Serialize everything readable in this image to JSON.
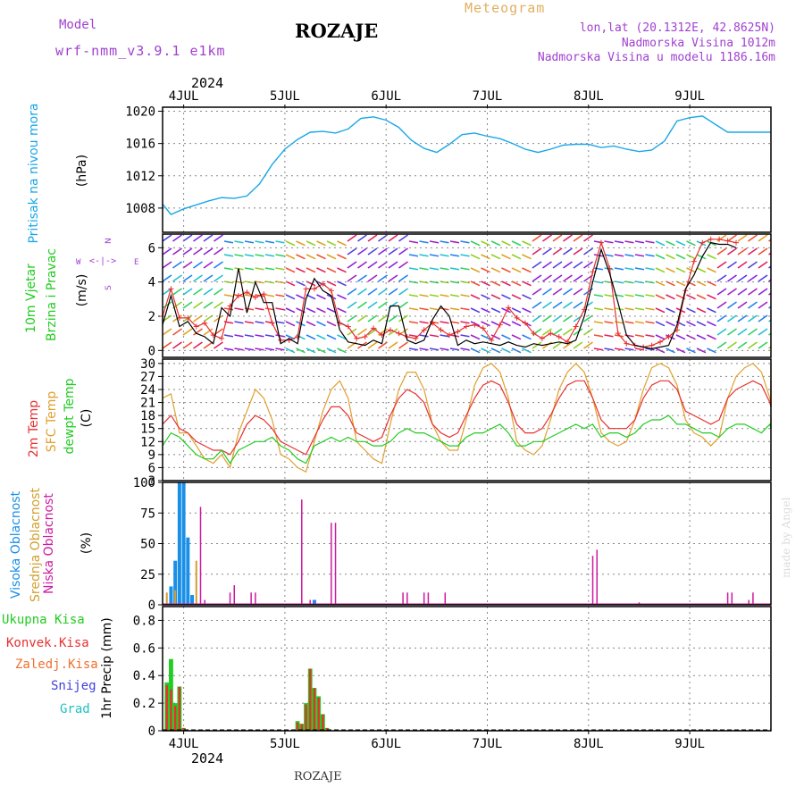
{
  "header": {
    "model_label": "Model",
    "model_name": "wrf-nmm_v3.9.1 e1km",
    "station": "ROZAJE",
    "product": "Meteogram",
    "location": "lon,lat (20.1312E, 42.8625N)",
    "altitude": "Nadmorska Visina 1012m",
    "model_altitude": "Nadmorska Visina u modelu 1186.16m",
    "credit": "made by Angel",
    "footer_station": "ROZAJE",
    "year_top": "2024",
    "year_bottom": "2024"
  },
  "time_axis": {
    "days": [
      "4JUL",
      "5JUL",
      "6JUL",
      "7JUL",
      "8JUL",
      "9JUL"
    ],
    "start_hour": 0,
    "end_hour": 144
  },
  "colors": {
    "pressure": "#1aa7e8",
    "wind_speed": "#000000",
    "gust": "#e83030",
    "temp2m": "#e83030",
    "sfc_temp": "#e0a030",
    "dewpoint": "#22cc22",
    "cloud_high": "#1a8fe8",
    "cloud_mid": "#d0a030",
    "cloud_low": "#cc1aa0",
    "precip_total": "#22cc22",
    "precip_conv": "#e83030",
    "precip_frz": "#f07030",
    "precip_snow": "#4040e0",
    "precip_graupel": "#20c0c0",
    "grid": "#888888"
  },
  "panels": {
    "pressure": {
      "label": "Pritisak na nivou mora",
      "unit": "(hPa)",
      "ticks": [
        "1020",
        "1016",
        "1012",
        "1008"
      ]
    },
    "wind": {
      "label_1": "10m Vjetar",
      "label_2": "Brzina i Pravac",
      "unit": "(m/s)",
      "ticks": [
        "6",
        "4",
        "2",
        "0"
      ],
      "compass_n": "N",
      "compass_s": "S",
      "compass_w": "W",
      "compass_e": "E"
    },
    "temp": {
      "label_1": "2m Temp",
      "label_2": "SFC Temp",
      "label_3": "dewpt Temp",
      "unit": "(C)",
      "ticks": [
        "30",
        "27",
        "24",
        "21",
        "18",
        "15",
        "12",
        "9",
        "6",
        "3"
      ]
    },
    "cloud": {
      "label_1": "Visoka Oblacnost",
      "label_2": "Srednja Oblacnost",
      "label_3": "Niska Oblacnost",
      "unit": "(%)",
      "ticks": [
        "100",
        "75",
        "50",
        "25",
        "0"
      ]
    },
    "precip": {
      "label_total": "Ukupna Kisa",
      "label_conv": "Konvek.Kisa",
      "label_frz": "Zaledj.Kisa",
      "label_snow": "Snijeg",
      "label_graupel": "Grad",
      "unit": "1hr Precip (mm)",
      "ticks": [
        "0.8",
        "0.6",
        "0.4",
        "0.2",
        "0"
      ]
    }
  },
  "chart_data": [
    {
      "type": "line",
      "title": "Pritisak na nivou mora",
      "ylabel": "(hPa)",
      "ylim": [
        1005,
        1020.5
      ],
      "x_hours": [
        -5,
        -3,
        0,
        3,
        6,
        9,
        12,
        15,
        18,
        21,
        24,
        27,
        30,
        33,
        36,
        39,
        42,
        45,
        48,
        51,
        54,
        57,
        60,
        63,
        66,
        69,
        72,
        75,
        78,
        81,
        84,
        87,
        90,
        93,
        96,
        99,
        102,
        105,
        108,
        111,
        114,
        117,
        120,
        123,
        126,
        129,
        132,
        135,
        138,
        141,
        144
      ],
      "values": [
        1008.5,
        1007.2,
        1007.9,
        1008.4,
        1008.9,
        1009.3,
        1009.2,
        1009.5,
        1011.0,
        1013.4,
        1015.3,
        1016.5,
        1017.4,
        1017.5,
        1017.3,
        1017.8,
        1019.1,
        1019.3,
        1018.9,
        1018.0,
        1016.4,
        1015.4,
        1014.9,
        1015.9,
        1017.1,
        1017.3,
        1016.9,
        1016.6,
        1016.0,
        1015.3,
        1014.9,
        1015.3,
        1015.8,
        1015.9,
        1015.9,
        1015.5,
        1015.7,
        1015.3,
        1015.0,
        1015.2,
        1016.3,
        1018.8,
        1019.2,
        1019.4,
        1018.4,
        1017.4,
        1017.4,
        1017.4,
        1017.4,
        1017.4,
        1017.4
      ]
    },
    {
      "type": "line",
      "title": "10m Vjetar Brzina i Pravac",
      "ylabel": "(m/s)",
      "ylim": [
        -0.4,
        6.8
      ],
      "series": [
        {
          "name": "wind_speed",
          "x_hours": [
            -5,
            -3,
            -1,
            1,
            3,
            5,
            7,
            9,
            11,
            13,
            15,
            17,
            19,
            21,
            23,
            25,
            27,
            29,
            31,
            33,
            35,
            37,
            39,
            41,
            43,
            45,
            47,
            49,
            51,
            53,
            55,
            57,
            59,
            61,
            63,
            65,
            67,
            69,
            71,
            73,
            75,
            77,
            79,
            81,
            83,
            85,
            87,
            89,
            91,
            93,
            95,
            97,
            99,
            101,
            103,
            105,
            107,
            109,
            111,
            113,
            115,
            117,
            119,
            121,
            123,
            125,
            127,
            129,
            131
          ],
          "values": [
            1.5,
            3.2,
            1.4,
            1.7,
            1.0,
            0.8,
            0.4,
            2.5,
            2.0,
            4.8,
            2.2,
            4.0,
            2.8,
            2.8,
            0.4,
            0.7,
            0.4,
            3.0,
            4.2,
            3.5,
            3.2,
            1.2,
            0.5,
            0.4,
            0.3,
            0.6,
            0.4,
            2.6,
            2.6,
            0.6,
            0.4,
            0.6,
            1.8,
            2.6,
            2.0,
            0.3,
            0.6,
            0.4,
            0.5,
            0.4,
            0.3,
            0.5,
            0.3,
            0.2,
            0.4,
            0.3,
            0.4,
            0.5,
            0.4,
            0.6,
            2.0,
            4.0,
            5.9,
            4.5,
            2.8,
            0.9,
            0.3,
            0.2,
            0.1,
            0.2,
            0.3,
            1.5,
            3.6,
            4.4,
            5.5,
            6.3,
            6.2,
            6.2,
            6.0
          ]
        },
        {
          "name": "gust",
          "x_hours": [
            -5,
            -3,
            -1,
            1,
            3,
            5,
            7,
            9,
            11,
            13,
            15,
            17,
            19,
            21,
            23,
            25,
            27,
            29,
            31,
            33,
            35,
            37,
            39,
            41,
            43,
            45,
            47,
            49,
            51,
            53,
            55,
            57,
            59,
            61,
            63,
            65,
            67,
            69,
            71,
            73,
            75,
            77,
            79,
            81,
            83,
            85,
            87,
            89,
            91,
            93,
            95,
            97,
            99,
            101,
            103,
            105,
            107,
            109,
            111,
            113,
            115,
            117,
            119,
            121,
            123,
            125,
            127,
            129,
            131
          ],
          "values": [
            2.0,
            3.6,
            1.9,
            1.9,
            1.4,
            1.6,
            0.9,
            0.7,
            2.6,
            3.2,
            3.4,
            3.1,
            3.3,
            1.6,
            0.6,
            0.6,
            0.8,
            3.6,
            3.6,
            3.9,
            3.5,
            1.6,
            1.4,
            0.7,
            0.8,
            1.3,
            0.9,
            1.2,
            1.0,
            0.8,
            0.7,
            1.2,
            1.6,
            1.2,
            0.9,
            1.1,
            1.4,
            1.5,
            1.3,
            0.6,
            1.5,
            2.5,
            1.9,
            1.6,
            1.0,
            0.7,
            1.0,
            0.8,
            0.5,
            1.4,
            2.4,
            4.6,
            6.3,
            4.8,
            1.0,
            0.4,
            0.3,
            0.2,
            0.3,
            0.5,
            0.8,
            1.2,
            3.5,
            5.2,
            6.3,
            6.5,
            6.5,
            6.4,
            6.3
          ]
        }
      ]
    },
    {
      "type": "line",
      "title": "2m Temp / SFC Temp / dewpt Temp",
      "ylabel": "(C)",
      "ylim": [
        3,
        31
      ],
      "series": [
        {
          "name": "temp2m",
          "x_hours": [
            -5,
            -3,
            -1,
            1,
            3,
            5,
            7,
            9,
            11,
            13,
            15,
            17,
            19,
            21,
            23,
            25,
            27,
            29,
            31,
            33,
            35,
            37,
            39,
            41,
            43,
            45,
            47,
            49,
            51,
            53,
            55,
            57,
            59,
            61,
            63,
            65,
            67,
            69,
            71,
            73,
            75,
            77,
            79,
            81,
            83,
            85,
            87,
            89,
            91,
            93,
            95,
            97,
            99,
            101,
            103,
            105,
            107,
            109,
            111,
            113,
            115,
            117,
            119,
            121,
            123,
            125,
            127,
            129,
            131,
            133,
            135,
            137,
            139,
            141,
            144
          ],
          "values": [
            16,
            18,
            15,
            14,
            12,
            11,
            10,
            10,
            9,
            12,
            16,
            18,
            17,
            15,
            12,
            11,
            10,
            9,
            13,
            17,
            20,
            20,
            18,
            14,
            13,
            12,
            13,
            18,
            22,
            24,
            23,
            21,
            16,
            14,
            13,
            14,
            18,
            22,
            25,
            26,
            25,
            21,
            16,
            14,
            14,
            15,
            18,
            22,
            25,
            26,
            26,
            22,
            17,
            15,
            15,
            15,
            17,
            22,
            25,
            26,
            26,
            24,
            19,
            18,
            17,
            16,
            17,
            22,
            24,
            25,
            26,
            25,
            21,
            20,
            26
          ]
        },
        {
          "name": "sfc_temp",
          "x_hours": [
            -5,
            -3,
            -1,
            1,
            3,
            5,
            7,
            9,
            11,
            13,
            15,
            17,
            19,
            21,
            23,
            25,
            27,
            29,
            31,
            33,
            35,
            37,
            39,
            41,
            43,
            45,
            47,
            49,
            51,
            53,
            55,
            57,
            59,
            61,
            63,
            65,
            67,
            69,
            71,
            73,
            75,
            77,
            79,
            81,
            83,
            85,
            87,
            89,
            91,
            93,
            95,
            97,
            99,
            101,
            103,
            105,
            107,
            109,
            111,
            113,
            115,
            117,
            119,
            121,
            123,
            125,
            127,
            129,
            131,
            133,
            135,
            137,
            139,
            141,
            144
          ],
          "values": [
            22,
            23,
            14,
            14,
            11,
            8,
            7,
            9,
            6,
            14,
            19,
            24,
            22,
            17,
            9,
            8,
            6,
            5,
            12,
            19,
            24,
            26,
            22,
            12,
            10,
            8,
            7,
            16,
            24,
            28,
            28,
            24,
            16,
            12,
            10,
            10,
            17,
            25,
            29,
            30,
            28,
            22,
            12,
            10,
            9,
            11,
            17,
            24,
            28,
            30,
            28,
            22,
            14,
            12,
            11,
            12,
            17,
            24,
            29,
            30,
            29,
            25,
            17,
            14,
            13,
            11,
            13,
            22,
            27,
            29,
            30,
            28,
            22,
            20,
            30
          ]
        },
        {
          "name": "dewpoint",
          "x_hours": [
            -5,
            -3,
            -1,
            1,
            3,
            5,
            7,
            9,
            11,
            13,
            15,
            17,
            19,
            21,
            23,
            25,
            27,
            29,
            31,
            33,
            35,
            37,
            39,
            41,
            43,
            45,
            47,
            49,
            51,
            53,
            55,
            57,
            59,
            61,
            63,
            65,
            67,
            69,
            71,
            73,
            75,
            77,
            79,
            81,
            83,
            85,
            87,
            89,
            91,
            93,
            95,
            97,
            99,
            101,
            103,
            105,
            107,
            109,
            111,
            113,
            115,
            117,
            119,
            121,
            123,
            125,
            127,
            129,
            131,
            133,
            135,
            137,
            139,
            141,
            144
          ],
          "values": [
            11,
            14,
            13,
            11,
            9,
            8,
            8,
            10,
            7,
            10,
            11,
            12,
            12,
            13,
            11,
            10,
            8,
            7,
            11,
            12,
            13,
            12,
            13,
            12,
            12,
            11,
            11,
            12,
            14,
            15,
            14,
            14,
            13,
            12,
            11,
            11,
            13,
            14,
            14,
            15,
            16,
            14,
            11,
            11,
            12,
            12,
            13,
            14,
            15,
            16,
            15,
            16,
            13,
            14,
            14,
            13,
            14,
            16,
            17,
            17,
            18,
            16,
            16,
            15,
            14,
            14,
            13,
            15,
            16,
            16,
            15,
            14,
            16,
            15,
            18
          ]
        }
      ]
    },
    {
      "type": "bar",
      "title": "Visoka / Srednja / Niska Oblacnost",
      "ylabel": "(%)",
      "ylim": [
        0,
        100
      ],
      "series": [
        {
          "name": "cloud_high",
          "x_hours": [
            -3,
            -2,
            -1,
            0,
            1,
            2,
            31
          ],
          "values": [
            15,
            36,
            100,
            100,
            55,
            8,
            4
          ]
        },
        {
          "name": "cloud_mid",
          "x_hours": [
            -4,
            -2,
            3
          ],
          "values": [
            10,
            12,
            36
          ]
        },
        {
          "name": "cloud_low",
          "x_hours": [
            -6,
            4,
            5,
            11,
            12,
            16,
            17,
            28,
            30,
            35,
            36,
            52,
            53,
            57,
            58,
            62,
            97,
            98,
            108,
            129,
            130,
            134,
            135,
            148
          ],
          "values": [
            50,
            80,
            4,
            10,
            16,
            10,
            10,
            86,
            4,
            67,
            67,
            10,
            10,
            10,
            10,
            10,
            40,
            45,
            2,
            10,
            10,
            4,
            10,
            10
          ]
        }
      ]
    },
    {
      "type": "bar",
      "title": "1hr Precip",
      "ylabel": "1hr Precip (mm)",
      "ylim": [
        0,
        0.9
      ],
      "series": [
        {
          "name": "precip_total",
          "x_hours": [
            -4,
            -3,
            -2,
            -1,
            0,
            27,
            28,
            29,
            30,
            31,
            32,
            33,
            34
          ],
          "values": [
            0.35,
            0.52,
            0.2,
            0.32,
            0.02,
            0.07,
            0.05,
            0.2,
            0.45,
            0.31,
            0.25,
            0.12,
            0.02
          ]
        },
        {
          "name": "precip_conv",
          "x_hours": [
            -4,
            -3,
            -2,
            -1,
            0,
            27,
            28,
            29,
            30,
            31,
            32,
            33,
            34
          ],
          "values": [
            0.33,
            0.3,
            0.18,
            0.32,
            0.02,
            0.06,
            0.05,
            0.19,
            0.45,
            0.31,
            0.24,
            0.12,
            0.02
          ]
        }
      ]
    }
  ]
}
